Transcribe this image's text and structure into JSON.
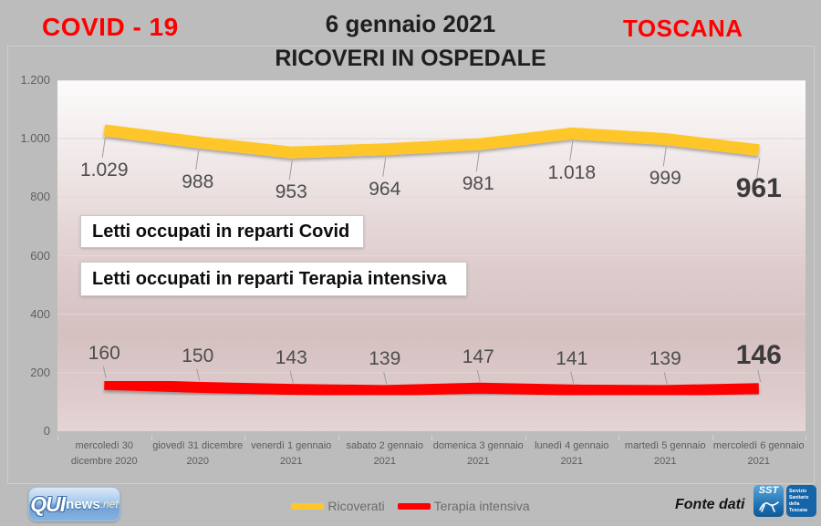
{
  "header": {
    "covid_label": "COVID - 19",
    "date_title": "6 gennaio 2021",
    "subtitle": "RICOVERI IN OSPEDALE",
    "region_label": "TOSCANA"
  },
  "chart_data": {
    "type": "line",
    "title": "RICOVERI IN OSPEDALE",
    "categories": [
      "mercoledì 30 dicembre 2020",
      "giovedì 31 dicembre 2020",
      "venerdì 1 gennaio 2021",
      "sabato 2 gennaio 2021",
      "domenica 3 gennaio 2021",
      "lunedì 4 gennaio 2021",
      "martedì 5 gennaio 2021",
      "mercoledì 6 gennaio 2021"
    ],
    "categories_lines": [
      [
        "mercoledì 30",
        "dicembre 2020"
      ],
      [
        "giovedì 31 dicembre",
        "2020"
      ],
      [
        "venerdì 1 gennaio",
        "2021"
      ],
      [
        "sabato 2 gennaio",
        "2021"
      ],
      [
        "domenica 3 gennaio",
        "2021"
      ],
      [
        "lunedì 4 gennaio 2021"
      ],
      [
        "martedì 5 gennaio",
        "2021"
      ],
      [
        "mercoledì 6 gennaio",
        "2021"
      ]
    ],
    "series": [
      {
        "name": "Ricoverati",
        "color": "#FFC62B",
        "values": [
          1029,
          988,
          953,
          964,
          981,
          1018,
          999,
          961
        ],
        "labels": [
          "1.029",
          "988",
          "953",
          "964",
          "981",
          "1.018",
          "999",
          "961"
        ]
      },
      {
        "name": "Terapia intensiva",
        "color": "#FE0000",
        "values": [
          160,
          150,
          143,
          139,
          147,
          141,
          139,
          146
        ],
        "labels": [
          "160",
          "150",
          "143",
          "139",
          "147",
          "141",
          "139",
          "146"
        ]
      }
    ],
    "ylim": [
      0,
      1200
    ],
    "ytick_step": 200,
    "yticks_labels": [
      "0",
      "200",
      "400",
      "600",
      "800",
      "1.000",
      "1.200"
    ],
    "grid": true,
    "legend_position": "bottom"
  },
  "annotations": {
    "covid_box": "Letti occupati in reparti Covid",
    "icu_box": "Letti occupati in reparti Terapia intensiva"
  },
  "legend": {
    "items": [
      {
        "label": "Ricoverati",
        "color": "#FFC62B"
      },
      {
        "label": "Terapia intensiva",
        "color": "#FE0000"
      }
    ]
  },
  "footer": {
    "fonte_label": "Fonte dati",
    "quinews_logo": {
      "qui": "QUI",
      "news": "news",
      "net": ".net"
    },
    "sst_logo": {
      "abbr": "SST",
      "lines": [
        "Servizio",
        "Sanitario",
        "della",
        "Toscana"
      ]
    }
  },
  "colors": {
    "accent_red": "#FF0000",
    "line_yellow": "#FFC62B",
    "line_red": "#FE0000",
    "background": "#BDBCBC",
    "label_gray": "#4D4D4D"
  }
}
